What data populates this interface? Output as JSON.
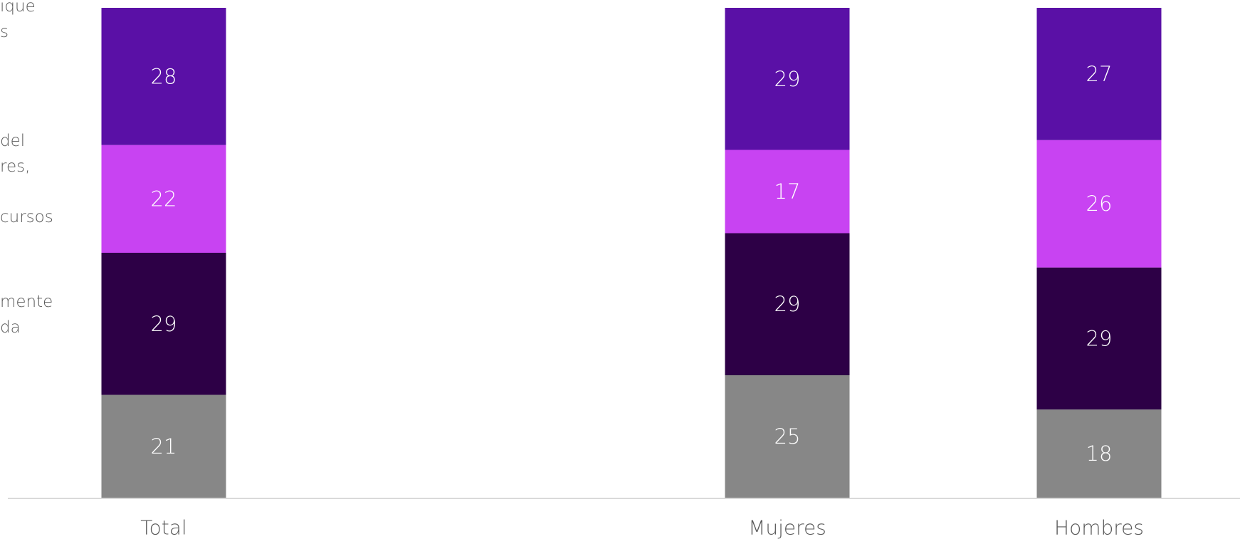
{
  "chart_data": {
    "type": "bar",
    "stacked": true,
    "orientation": "vertical",
    "categories": [
      "Total",
      "Mujeres",
      "Hombres"
    ],
    "series": [
      {
        "values": [
          21,
          25,
          18
        ],
        "color": "#878787"
      },
      {
        "values": [
          29,
          29,
          29
        ],
        "color": "#2D0046"
      },
      {
        "values": [
          22,
          17,
          26
        ],
        "color": "#C843F2"
      },
      {
        "values": [
          28,
          29,
          27
        ],
        "color": "#5A10A6"
      }
    ],
    "legend_fragments": [
      [
        "ique",
        "s"
      ],
      [
        "del",
        "res,",
        "cursos"
      ],
      [
        "mente",
        "da"
      ]
    ],
    "data_labels": true,
    "grid": false,
    "legend_position": "left (cropped)",
    "ylim": [
      0,
      100
    ]
  }
}
